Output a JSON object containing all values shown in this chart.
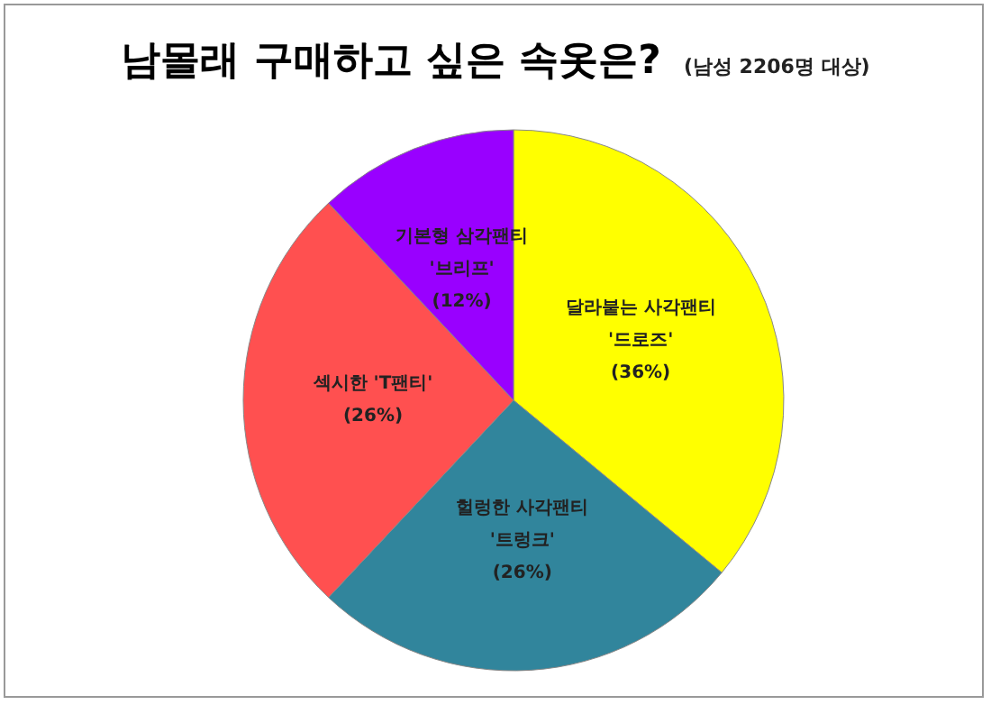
{
  "chart_data": {
    "type": "pie",
    "title": "남몰래 구매하고 싶은 속옷은?",
    "subtitle": "(남성 2206명 대상)",
    "categories": [
      "달라붙는 사각팬티\n'드로즈'",
      "헐렁한 사각팬티\n'트렁크'",
      "섹시한 'T팬티'",
      "기본형 삼각팬티\n'브리프'"
    ],
    "values": [
      36,
      26,
      26,
      12
    ],
    "colors": [
      "#ffff00",
      "#31859c",
      "#ff5050",
      "#9900ff"
    ],
    "value_labels": [
      "(36%)",
      "(26%)",
      "(26%)",
      "(12%)"
    ],
    "legend": false
  }
}
